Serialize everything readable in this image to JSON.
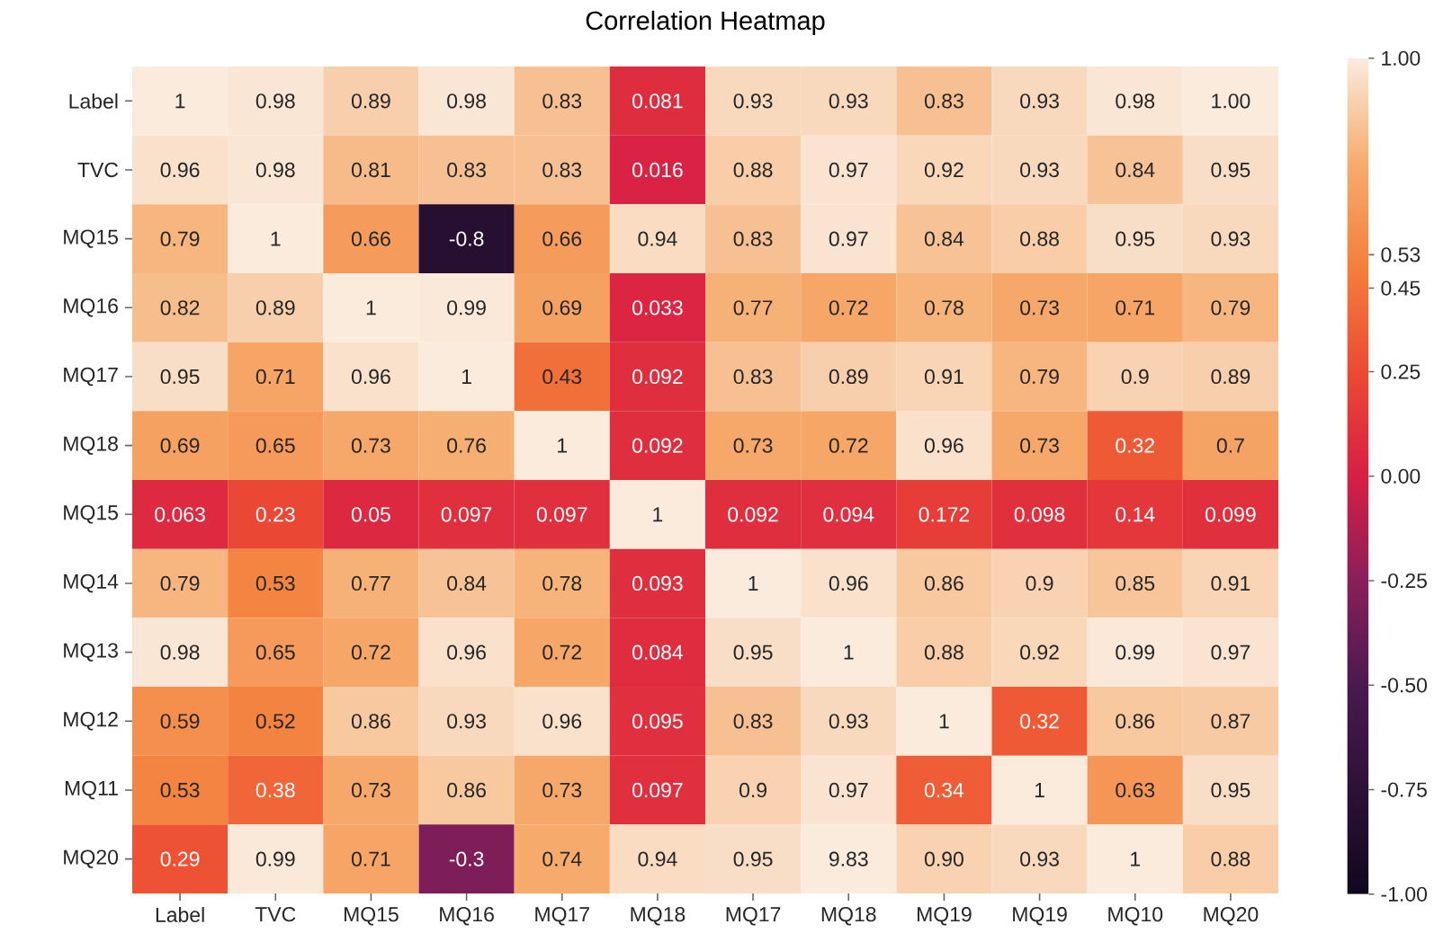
{
  "chart_data": {
    "type": "heatmap",
    "title": "Correlation Heatmap",
    "categories": [
      "Label",
      "TVC",
      "MQ15",
      "MQ16",
      "MQ17",
      "MQ18",
      "MQ17",
      "MQ18",
      "MQ19",
      "MQ19",
      "MQ10",
      "MQ20"
    ],
    "y_categories": [
      "Label",
      "TVC",
      "MQ15",
      "MQ16",
      "MQ17",
      "MQ18",
      "MQ15",
      "MQ14",
      "MQ13",
      "MQ12",
      "MQ11",
      "MQ20"
    ],
    "cells": [
      [
        1,
        0.98,
        0.89,
        0.98,
        0.83,
        0.081,
        0.93,
        0.93,
        0.83,
        0.93,
        0.98,
        1.0
      ],
      [
        0.96,
        0.98,
        0.81,
        0.83,
        0.83,
        0.016,
        0.88,
        0.97,
        0.92,
        0.93,
        0.84,
        0.95
      ],
      [
        0.79,
        1,
        0.66,
        -0.8,
        0.66,
        0.94,
        0.83,
        0.97,
        0.84,
        0.88,
        0.95,
        0.93
      ],
      [
        0.82,
        0.89,
        1,
        0.99,
        0.69,
        0.033,
        0.77,
        0.72,
        0.78,
        0.73,
        0.71,
        0.79
      ],
      [
        0.95,
        0.71,
        0.96,
        1,
        0.43,
        0.092,
        0.83,
        0.89,
        0.91,
        0.79,
        0.9,
        0.89
      ],
      [
        0.69,
        0.65,
        0.73,
        0.76,
        1,
        0.092,
        0.73,
        0.72,
        0.96,
        0.73,
        0.32,
        0.7
      ],
      [
        0.063,
        0.23,
        0.05,
        0.097,
        0.097,
        1,
        0.092,
        0.094,
        0.172,
        0.098,
        0.14,
        0.099
      ],
      [
        0.79,
        0.53,
        0.77,
        0.84,
        0.78,
        0.093,
        1,
        0.96,
        0.86,
        0.9,
        0.85,
        0.91
      ],
      [
        0.98,
        0.65,
        0.72,
        0.96,
        0.72,
        0.084,
        0.95,
        1,
        0.88,
        0.92,
        0.99,
        0.97
      ],
      [
        0.59,
        0.52,
        0.86,
        0.93,
        0.96,
        0.095,
        0.83,
        0.93,
        1,
        0.32,
        0.86,
        0.87
      ],
      [
        0.53,
        0.38,
        0.73,
        0.86,
        0.73,
        0.097,
        0.9,
        0.97,
        0.34,
        1,
        0.63,
        0.95
      ],
      [
        0.29,
        0.99,
        0.71,
        -0.3,
        0.74,
        0.94,
        0.95,
        9.83,
        0.9,
        0.93,
        1,
        0.88
      ]
    ],
    "cell_labels": [
      [
        "1",
        "0.98",
        "0.89",
        "0.98",
        "0.83",
        "0.081",
        "0.93",
        "0.93",
        "0.83",
        "0.93",
        "0.98",
        "1.00"
      ],
      [
        "0.96",
        "0.98",
        "0.81",
        "0.83",
        "0.83",
        "0.016",
        "0.88",
        "0.97",
        "0.92",
        "0.93",
        "0.84",
        "0.95"
      ],
      [
        "0.79",
        "1",
        "0.66",
        "-0.8",
        "0.66",
        "0.94",
        "0.83",
        "0.97",
        "0.84",
        "0.88",
        "0.95",
        "0.93"
      ],
      [
        "0.82",
        "0.89",
        "1",
        "0.99",
        "0.69",
        "0.033",
        "0.77",
        "0.72",
        "0.78",
        "0.73",
        "0.71",
        "0.79"
      ],
      [
        "0.95",
        "0.71",
        "0.96",
        "1",
        "0.43",
        "0.092",
        "0.83",
        "0.89",
        "0.91",
        "0.79",
        "0.9",
        "0.89"
      ],
      [
        "0.69",
        "0.65",
        "0.73",
        "0.76",
        "1",
        "0.092",
        "0.73",
        "0.72",
        "0.96",
        "0.73",
        "0.32",
        "0.7"
      ],
      [
        "0.063",
        "0.23",
        "0.05",
        "0.097",
        "0.097",
        "1",
        "0.092",
        "0.094",
        "0.172",
        "0.098",
        "0.14",
        "0.099"
      ],
      [
        "0.79",
        "0.53",
        "0.77",
        "0.84",
        "0.78",
        "0.093",
        "1",
        "0.96",
        "0.86",
        "0.9",
        "0.85",
        "0.91"
      ],
      [
        "0.98",
        "0.65",
        "0.72",
        "0.96",
        "0.72",
        "0.084",
        "0.95",
        "1",
        "0.88",
        "0.92",
        "0.99",
        "0.97"
      ],
      [
        "0.59",
        "0.52",
        "0.86",
        "0.93",
        "0.96",
        "0.095",
        "0.83",
        "0.93",
        "1",
        "0.32",
        "0.86",
        "0.87"
      ],
      [
        "0.53",
        "0.38",
        "0.73",
        "0.86",
        "0.73",
        "0.097",
        "0.9",
        "0.97",
        "0.34",
        "1",
        "0.63",
        "0.95"
      ],
      [
        "0.29",
        "0.99",
        "0.71",
        "-0.3",
        "0.74",
        "0.94",
        "0.95",
        "9.83",
        "0.90",
        "0.93",
        "1",
        "0.88"
      ]
    ],
    "clim": [
      -1,
      1
    ],
    "cticks": [
      {
        "value": 1,
        "label": "1.00"
      },
      {
        "value": 0.45,
        "label": "0.45"
      },
      {
        "value": 0.53,
        "label": "0.53"
      },
      {
        "value": 0.25,
        "label": "0.25"
      },
      {
        "value": 0,
        "label": "0.00"
      },
      {
        "value": -0.25,
        "label": "-0.25"
      },
      {
        "value": -0.5,
        "label": "-0.50"
      },
      {
        "value": -0.75,
        "label": "-0.75"
      },
      {
        "value": -1,
        "label": "-1.00"
      }
    ]
  }
}
